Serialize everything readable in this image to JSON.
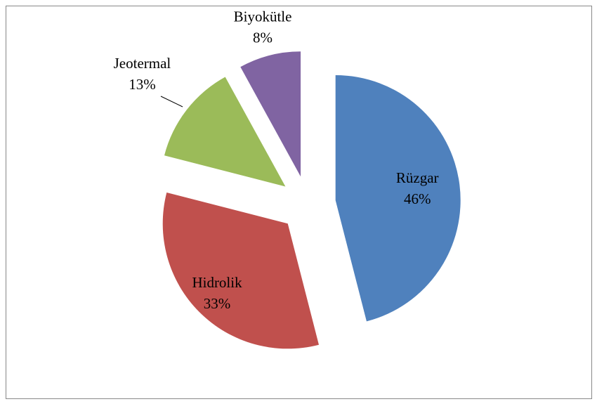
{
  "chart_data": {
    "type": "pie",
    "categories": [
      "Rüzgar",
      "Hidrolik",
      "Jeotermal",
      "Biyokütle"
    ],
    "values": [
      46,
      33,
      13,
      8
    ],
    "value_labels": [
      "46%",
      "33%",
      "13%",
      "8%"
    ],
    "colors": [
      "#4f81bd",
      "#c0504d",
      "#9bbb59",
      "#8064a2"
    ]
  }
}
